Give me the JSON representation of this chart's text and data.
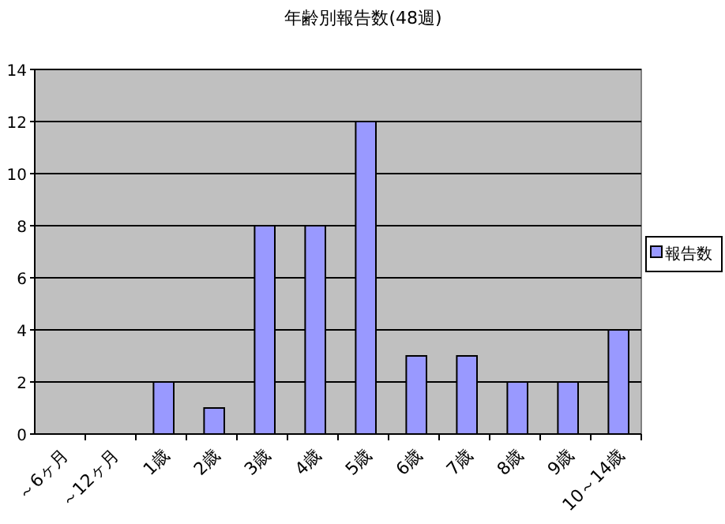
{
  "chart_data": {
    "type": "bar",
    "title": "年齢別報告数(48週)",
    "categories": [
      "～6ヶ月",
      "～12ヶ月",
      "1歳",
      "2歳",
      "3歳",
      "4歳",
      "5歳",
      "6歳",
      "7歳",
      "8歳",
      "9歳",
      "10～14歳"
    ],
    "series": [
      {
        "name": "報告数",
        "color": "#9999ff",
        "values": [
          0,
          0,
          2,
          1,
          8,
          8,
          12,
          3,
          3,
          2,
          2,
          4
        ]
      }
    ],
    "ylim": [
      0,
      14
    ],
    "yticks": [
      0,
      2,
      4,
      6,
      8,
      10,
      12,
      14
    ],
    "grid": "y",
    "legend": "right"
  }
}
